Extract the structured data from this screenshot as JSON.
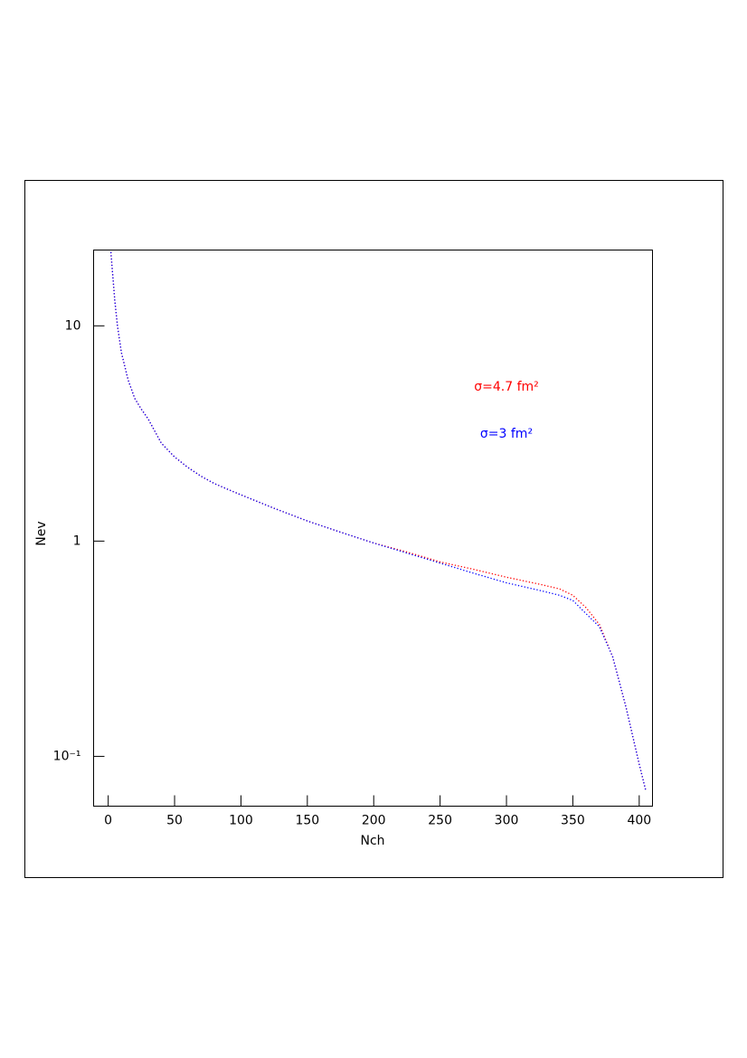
{
  "chart_data": {
    "type": "line",
    "x_label": "Nch",
    "y_label": "Nev",
    "log_y": true,
    "xlim": [
      -11,
      410
    ],
    "ylim": [
      0.0587,
      22.5
    ],
    "xticks": [
      0,
      50,
      100,
      150,
      200,
      250,
      300,
      350,
      400
    ],
    "yticks": [
      {
        "value": 0.1,
        "label": "10⁻¹"
      },
      1,
      10
    ],
    "x": [
      2,
      5,
      7,
      10,
      15,
      20,
      25,
      30,
      40,
      50,
      60,
      70,
      80,
      90,
      100,
      125,
      150,
      175,
      200,
      225,
      250,
      275,
      300,
      325,
      340,
      350,
      360,
      370,
      380,
      390,
      400,
      405
    ],
    "series": [
      {
        "name": "σ=4.7 fm²",
        "color": "#ff0000",
        "values": [
          22,
          13,
          10,
          7.5,
          5.6,
          4.6,
          4.1,
          3.7,
          2.85,
          2.46,
          2.2,
          2.0,
          1.85,
          1.74,
          1.64,
          1.42,
          1.24,
          1.1,
          0.98,
          0.89,
          0.8,
          0.74,
          0.68,
          0.63,
          0.6,
          0.56,
          0.49,
          0.41,
          0.29,
          0.17,
          0.092,
          0.069
        ]
      },
      {
        "name": "σ=3 fm²",
        "color": "#0000ff",
        "values": [
          22,
          13,
          10,
          7.5,
          5.6,
          4.6,
          4.1,
          3.7,
          2.85,
          2.46,
          2.2,
          2.0,
          1.85,
          1.74,
          1.64,
          1.42,
          1.24,
          1.1,
          0.98,
          0.88,
          0.79,
          0.71,
          0.64,
          0.59,
          0.56,
          0.53,
          0.46,
          0.4,
          0.29,
          0.17,
          0.092,
          0.069
        ]
      }
    ]
  }
}
